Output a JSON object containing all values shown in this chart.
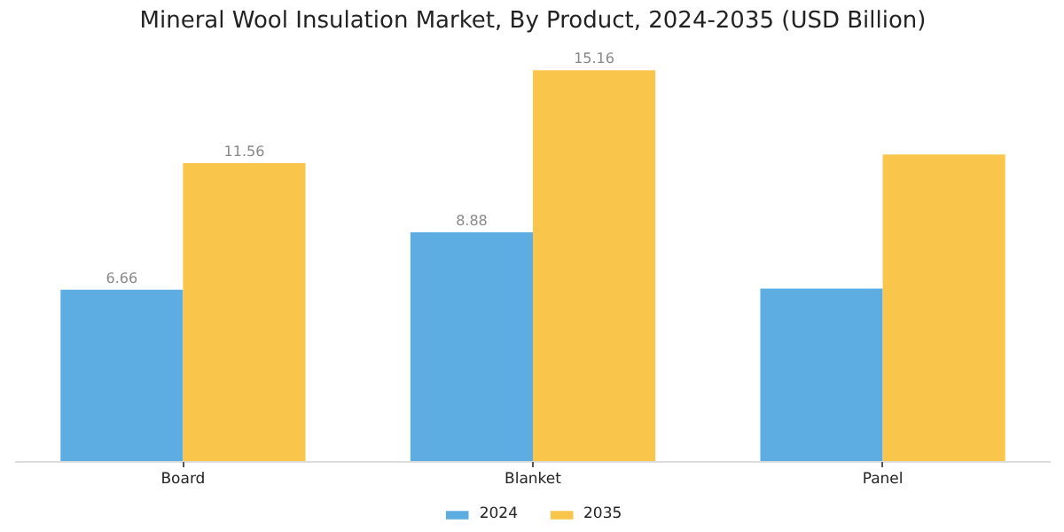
{
  "chart_data": {
    "type": "bar",
    "title": "Mineral Wool Insulation Market, By Product, 2024-2035 (USD Billion)",
    "categories": [
      "Board",
      "Blanket",
      "Panel"
    ],
    "series": [
      {
        "name": "2024",
        "color": "#5dade2",
        "values": [
          6.66,
          8.88,
          6.7
        ],
        "value_labels": [
          "6.66",
          "8.88",
          null
        ]
      },
      {
        "name": "2035",
        "color": "#f9c54a",
        "values": [
          11.56,
          15.16,
          11.9
        ],
        "value_labels": [
          "11.56",
          "15.16",
          null
        ]
      }
    ],
    "legend": "bottom"
  }
}
